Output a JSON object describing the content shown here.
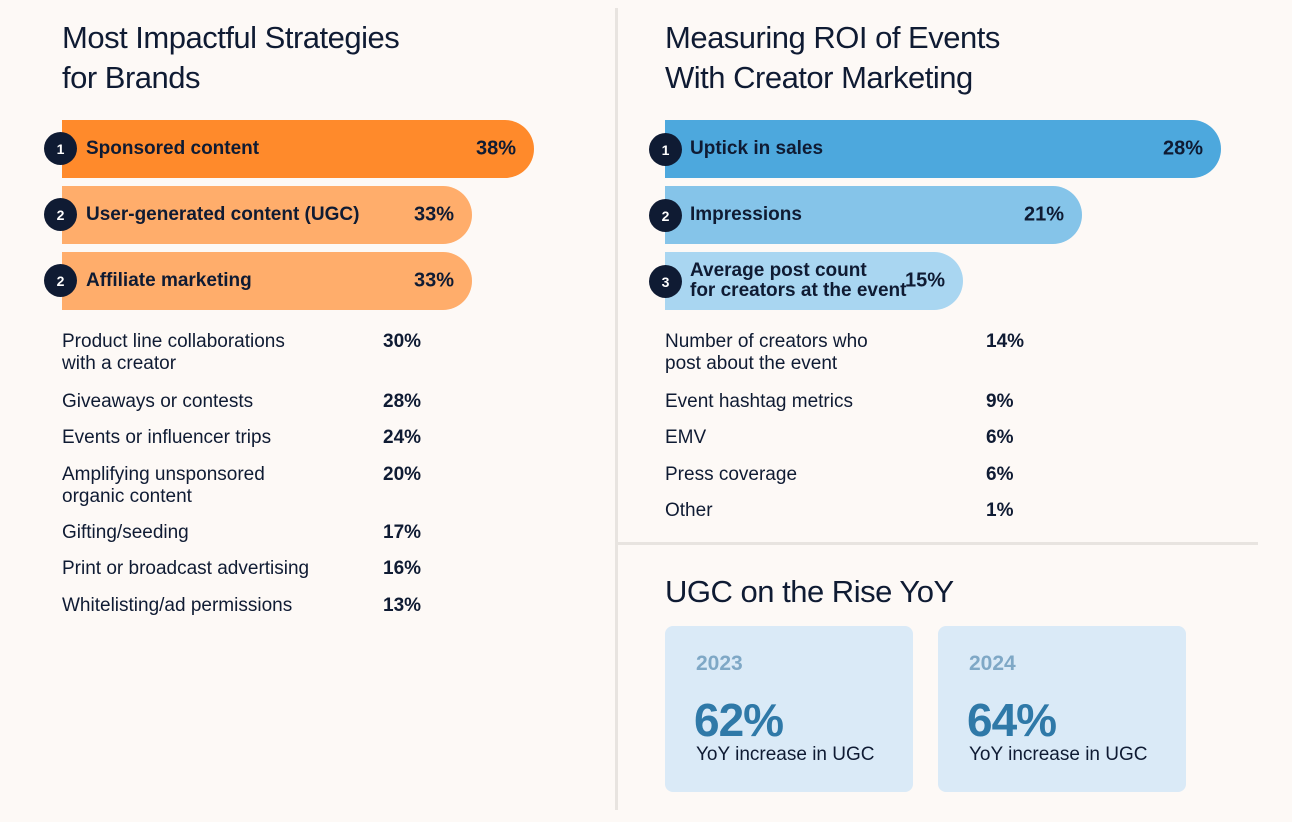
{
  "left": {
    "title_lines": [
      "Most Impactful Strategies",
      "for Brands"
    ],
    "top_bars": [
      {
        "rank": "1",
        "label": "Sponsored content",
        "value": "38%",
        "pct": 38,
        "color": "#ff8a2b"
      },
      {
        "rank": "2",
        "label": "User-generated content (UGC)",
        "value": "33%",
        "pct": 33,
        "color": "#ffad6b"
      },
      {
        "rank": "2",
        "label": "Affiliate marketing",
        "value": "33%",
        "pct": 33,
        "color": "#ffad6b"
      }
    ],
    "list": [
      {
        "label_lines": [
          "Product line collaborations",
          "with a creator"
        ],
        "value": "30%"
      },
      {
        "label_lines": [
          "Giveaways or contests"
        ],
        "value": "28%"
      },
      {
        "label_lines": [
          "Events or influencer trips"
        ],
        "value": "24%"
      },
      {
        "label_lines": [
          "Amplifying unsponsored",
          "organic content"
        ],
        "value": "20%"
      },
      {
        "label_lines": [
          "Gifting/seeding"
        ],
        "value": "17%"
      },
      {
        "label_lines": [
          "Print or broadcast advertising"
        ],
        "value": "16%"
      },
      {
        "label_lines": [
          "Whitelisting/ad permissions"
        ],
        "value": "13%"
      }
    ]
  },
  "right": {
    "title_lines": [
      "Measuring ROI of Events",
      "With Creator Marketing"
    ],
    "top_bars": [
      {
        "rank": "1",
        "label_lines": [
          "Uptick in sales"
        ],
        "value": "28%",
        "pct": 28,
        "color": "#4da8dd"
      },
      {
        "rank": "2",
        "label_lines": [
          "Impressions"
        ],
        "value": "21%",
        "pct": 21,
        "color": "#85c4e9"
      },
      {
        "rank": "3",
        "label_lines": [
          "Average post count",
          "for creators at the event"
        ],
        "value": "15%",
        "pct": 15,
        "color": "#a9d6f1"
      }
    ],
    "list": [
      {
        "label_lines": [
          "Number of creators who",
          "post about the event"
        ],
        "value": "14%"
      },
      {
        "label_lines": [
          "Event hashtag metrics"
        ],
        "value": "9%"
      },
      {
        "label_lines": [
          "EMV"
        ],
        "value": "6%"
      },
      {
        "label_lines": [
          "Press coverage"
        ],
        "value": "6%"
      },
      {
        "label_lines": [
          "Other"
        ],
        "value": "1%"
      }
    ]
  },
  "ugc": {
    "title": "UGC on the Rise YoY",
    "cards": [
      {
        "year": "2023",
        "value": "62%",
        "caption": "YoY increase in UGC"
      },
      {
        "year": "2024",
        "value": "64%",
        "caption": "YoY increase in UGC"
      }
    ]
  },
  "chart_data": [
    {
      "type": "bar",
      "title": "Most Impactful Strategies for Brands",
      "categories": [
        "Sponsored content",
        "User-generated content (UGC)",
        "Affiliate marketing",
        "Product line collaborations with a creator",
        "Giveaways or contests",
        "Events or influencer trips",
        "Amplifying unsponsored organic content",
        "Gifting/seeding",
        "Print or broadcast advertising",
        "Whitelisting/ad permissions"
      ],
      "values": [
        38,
        33,
        33,
        30,
        28,
        24,
        20,
        17,
        16,
        13
      ],
      "unit": "%"
    },
    {
      "type": "bar",
      "title": "Measuring ROI of Events With Creator Marketing",
      "categories": [
        "Uptick in sales",
        "Impressions",
        "Average post count for creators at the event",
        "Number of creators who post about the event",
        "Event hashtag metrics",
        "EMV",
        "Press coverage",
        "Other"
      ],
      "values": [
        28,
        21,
        15,
        14,
        9,
        6,
        6,
        1
      ],
      "unit": "%"
    }
  ]
}
